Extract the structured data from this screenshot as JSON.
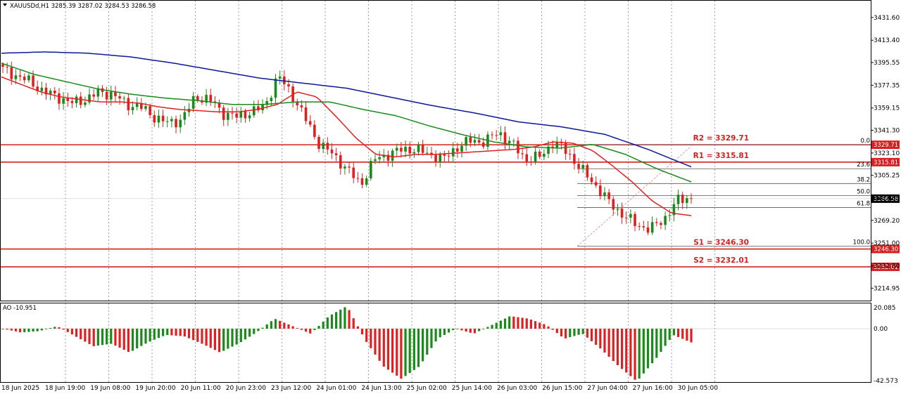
{
  "header": {
    "symbol_info": "XAUUSDd,H1  3285.39 3287.02 3284.53 3286.58",
    "collapse_icon": "triangle-down-icon"
  },
  "indicator": {
    "label": "AO -10.951"
  },
  "colors": {
    "bull": "#1a8a1a",
    "bear": "#e02020",
    "ma_fast": "#e02020",
    "ma_mid": "#1a8a1a",
    "ma_slow": "#0a1a99",
    "level_line": "#d42020",
    "fib_line": "#555555",
    "trend_line": "#e89a9a"
  },
  "chart_data": [
    {
      "type": "candlestick",
      "symbol": "XAUUSDd",
      "timeframe": "H1",
      "ohlc_current": {
        "open": 3285.39,
        "high": 3287.02,
        "low": 3284.53,
        "close": 3286.58
      },
      "ylim": [
        3205,
        3445
      ],
      "y_ticks": [
        "3431.60",
        "3413.40",
        "3395.55",
        "3377.35",
        "3359.15",
        "3341.30",
        "3323.10",
        "3305.25",
        "3287.05",
        "3269.20",
        "3251.00",
        "3232.80",
        "3214.95"
      ],
      "x_ticks": [
        "18 Jun 2025",
        "18 Jun 19:00",
        "19 Jun 08:00",
        "19 Jun 20:00",
        "20 Jun 11:00",
        "20 Jun 23:00",
        "23 Jun 12:00",
        "24 Jun 01:00",
        "24 Jun 13:00",
        "25 Jun 02:00",
        "25 Jun 14:00",
        "26 Jun 03:00",
        "26 Jun 15:00",
        "27 Jun 04:00",
        "27 Jun 16:00",
        "30 Jun 05:00"
      ],
      "current_price": "3286.58",
      "horizontal_levels": [
        {
          "name": "R2",
          "value": 3329.71,
          "label": "R2 = 3329.71",
          "tag": "3329.71"
        },
        {
          "name": "R1",
          "value": 3315.81,
          "label": "R1 = 3315.81",
          "tag": "3315.81"
        },
        {
          "name": "S1",
          "value": 3246.3,
          "label": "S1 = 3246.30",
          "tag": "3246.30"
        },
        {
          "name": "S2",
          "value": 3232.01,
          "label": "S2 = 3232.01",
          "tag": "3232.01"
        }
      ],
      "fibonacci": {
        "high": 3329.71,
        "low": 3248.5,
        "levels": [
          {
            "ratio": 0.0,
            "label": "0.0"
          },
          {
            "ratio": 0.236,
            "label": "23.6"
          },
          {
            "ratio": 0.382,
            "label": "38.2"
          },
          {
            "ratio": 0.5,
            "label": "50.0"
          },
          {
            "ratio": 0.618,
            "label": "61.8"
          },
          {
            "ratio": 1.0,
            "label": "100.0"
          }
        ]
      },
      "price_anchors": [
        3390,
        3385,
        3380,
        3372,
        3368,
        3363,
        3366,
        3372,
        3370,
        3362,
        3360,
        3352,
        3347,
        3350,
        3368,
        3366,
        3355,
        3352,
        3356,
        3360,
        3385,
        3370,
        3350,
        3330,
        3322,
        3310,
        3298,
        3318,
        3322,
        3326,
        3326,
        3322,
        3318,
        3328,
        3333,
        3332,
        3340,
        3330,
        3318,
        3320,
        3332,
        3324,
        3310,
        3298,
        3284,
        3274,
        3266,
        3262,
        3270,
        3285,
        3288
      ],
      "moving_averages": [
        {
          "color_key": "ma_fast",
          "anchors": [
            3384,
            3378,
            3372,
            3368,
            3366,
            3364,
            3364,
            3363,
            3360,
            3358,
            3357,
            3356,
            3356,
            3358,
            3362,
            3372,
            3368,
            3352,
            3335,
            3322,
            3320,
            3322,
            3322,
            3323,
            3324,
            3325,
            3326,
            3328,
            3332,
            3331,
            3325,
            3313,
            3300,
            3285,
            3275,
            3273
          ]
        },
        {
          "color_key": "ma_mid",
          "anchors": [
            3395,
            3386,
            3380,
            3374,
            3370,
            3367,
            3365,
            3362,
            3362,
            3364,
            3364,
            3358,
            3353,
            3345,
            3338,
            3332,
            3328,
            3327,
            3330,
            3322,
            3310,
            3300
          ]
        },
        {
          "color_key": "ma_slow",
          "anchors": [
            3403,
            3404,
            3403,
            3400,
            3395,
            3389,
            3383,
            3379,
            3375,
            3368,
            3361,
            3355,
            3348,
            3344,
            3338,
            3326,
            3312
          ]
        }
      ]
    },
    {
      "type": "bar",
      "indicator": "Awesome Oscillator",
      "label": "AO -10.951",
      "current_value": -10.951,
      "ylim": [
        -42.573,
        20.085
      ],
      "y_ticks": [
        "20.085",
        "0.00",
        "-42.573"
      ],
      "anchors": [
        0,
        -3,
        -2,
        2,
        -6,
        -14,
        -12,
        -19,
        -11,
        -5,
        -6,
        -12,
        -19,
        -12,
        -3,
        8,
        2,
        -4,
        10,
        18,
        -9,
        -30,
        -40,
        -30,
        -8,
        0,
        -4,
        3,
        10,
        8,
        3,
        -8,
        -4,
        -16,
        -30,
        -42,
        -25,
        -5,
        -10.951
      ]
    }
  ]
}
